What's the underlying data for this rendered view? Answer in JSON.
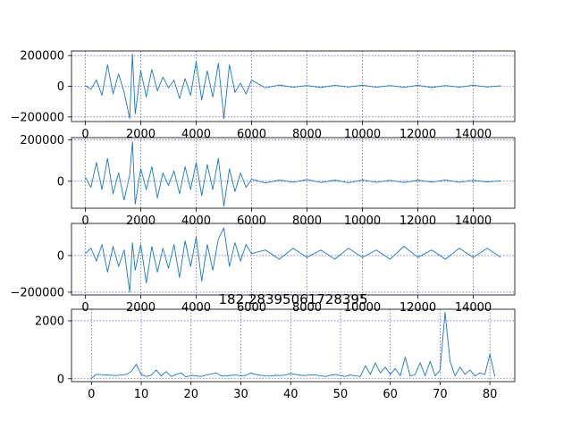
{
  "chart_data": [
    {
      "type": "line",
      "title": "",
      "xlabel": "",
      "ylabel": "",
      "xlim": [
        -500,
        15500
      ],
      "ylim": [
        -230000,
        230000
      ],
      "xticks": [
        0,
        2000,
        4000,
        6000,
        8000,
        10000,
        12000,
        14000
      ],
      "xtick_labels": [
        "0",
        "2000",
        "4000",
        "6000",
        "8000",
        "10000",
        "12000",
        "14000"
      ],
      "yticks": [
        -200000,
        0,
        200000
      ],
      "ytick_labels": [
        "−200000",
        "0",
        "200000"
      ],
      "grid": true,
      "color": "#1f77b4",
      "series": [
        {
          "x": [
            0,
            200,
            400,
            600,
            800,
            1000,
            1200,
            1400,
            1600,
            1700,
            1800,
            2000,
            2200,
            2400,
            2600,
            2800,
            3000,
            3200,
            3400,
            3600,
            3800,
            4000,
            4200,
            4400,
            4600,
            4800,
            5000,
            5200,
            5400,
            5600,
            5800,
            6000,
            6500,
            7000,
            7500,
            8000,
            8500,
            9000,
            9500,
            10000,
            10500,
            11000,
            11500,
            12000,
            12500,
            13000,
            13500,
            14000,
            14500,
            15000
          ],
          "values": [
            5000,
            -20000,
            40000,
            -60000,
            140000,
            -50000,
            80000,
            -40000,
            -210000,
            210000,
            -180000,
            100000,
            -70000,
            110000,
            -30000,
            60000,
            -10000,
            40000,
            -80000,
            50000,
            -60000,
            160000,
            -90000,
            100000,
            -70000,
            150000,
            -210000,
            140000,
            -40000,
            20000,
            -50000,
            40000,
            -10000,
            8000,
            -6000,
            5000,
            -8000,
            6000,
            -5000,
            7000,
            -6000,
            5000,
            -7000,
            6000,
            -8000,
            5000,
            -6000,
            7000,
            -5000,
            3000
          ]
        }
      ]
    },
    {
      "type": "line",
      "title": "",
      "xlabel": "",
      "ylabel": "",
      "xlim": [
        -500,
        15500
      ],
      "ylim": [
        -130000,
        210000
      ],
      "xticks": [
        0,
        2000,
        4000,
        6000,
        8000,
        10000,
        12000,
        14000
      ],
      "xtick_labels": [
        "0",
        "2000",
        "4000",
        "6000",
        "8000",
        "10000",
        "12000",
        "14000"
      ],
      "yticks": [
        0,
        200000
      ],
      "ytick_labels": [
        "0",
        "200000"
      ],
      "grid": true,
      "color": "#1f77b4",
      "series": [
        {
          "x": [
            0,
            200,
            400,
            600,
            800,
            1000,
            1200,
            1400,
            1600,
            1700,
            1800,
            2000,
            2200,
            2400,
            2600,
            2800,
            3000,
            3200,
            3400,
            3600,
            3800,
            4000,
            4200,
            4400,
            4600,
            4800,
            5000,
            5200,
            5400,
            5600,
            5800,
            6000,
            6500,
            7000,
            7500,
            8000,
            8500,
            9000,
            9500,
            10000,
            10500,
            11000,
            11500,
            12000,
            12500,
            13000,
            13500,
            14000,
            14500,
            15000
          ],
          "values": [
            20000,
            -30000,
            90000,
            -40000,
            110000,
            -60000,
            40000,
            -90000,
            30000,
            190000,
            -110000,
            60000,
            -40000,
            70000,
            -80000,
            40000,
            -20000,
            50000,
            -60000,
            70000,
            -40000,
            90000,
            -70000,
            80000,
            -40000,
            110000,
            -120000,
            60000,
            -50000,
            40000,
            -30000,
            10000,
            -8000,
            6000,
            -5000,
            8000,
            -6000,
            5000,
            -7000,
            6000,
            -5000,
            4000,
            -6000,
            5000,
            -4000,
            6000,
            -5000,
            4000,
            -3000,
            2000
          ]
        }
      ]
    },
    {
      "type": "line",
      "title": "",
      "xlabel": "",
      "ylabel": "",
      "xlim": [
        -500,
        15500
      ],
      "ylim": [
        -215000,
        175000
      ],
      "xticks": [
        0,
        2000,
        4000,
        6000,
        8000,
        10000,
        12000,
        14000
      ],
      "xtick_labels": [
        "0",
        "2000",
        "4000",
        "6000",
        "8000",
        "10000",
        "12000",
        "14000"
      ],
      "yticks": [
        -200000,
        0
      ],
      "ytick_labels": [
        "−200000",
        "0"
      ],
      "grid": true,
      "color": "#1f77b4",
      "series": [
        {
          "x": [
            0,
            200,
            400,
            600,
            800,
            1000,
            1200,
            1400,
            1600,
            1700,
            1800,
            2000,
            2200,
            2400,
            2600,
            2800,
            3000,
            3200,
            3400,
            3600,
            3800,
            4000,
            4200,
            4400,
            4600,
            4800,
            5000,
            5200,
            5400,
            5600,
            5800,
            6000,
            6500,
            7000,
            7500,
            8000,
            8500,
            9000,
            9500,
            10000,
            10500,
            11000,
            11500,
            12000,
            12500,
            13000,
            13500,
            14000,
            14500,
            15000
          ],
          "values": [
            10000,
            40000,
            -30000,
            60000,
            -90000,
            50000,
            -60000,
            30000,
            -200000,
            70000,
            -80000,
            60000,
            -150000,
            50000,
            -90000,
            40000,
            -70000,
            60000,
            -120000,
            80000,
            -60000,
            100000,
            -140000,
            60000,
            -80000,
            90000,
            150000,
            -60000,
            70000,
            -30000,
            60000,
            10000,
            30000,
            -20000,
            40000,
            -10000,
            30000,
            -20000,
            40000,
            -10000,
            30000,
            -20000,
            50000,
            -10000,
            30000,
            -20000,
            40000,
            -10000,
            40000,
            -10000
          ]
        }
      ]
    },
    {
      "type": "line",
      "title": "182.28395061728395",
      "xlabel": "",
      "ylabel": "",
      "xlim": [
        -4,
        85
      ],
      "ylim": [
        -100,
        2400
      ],
      "xticks": [
        0,
        10,
        20,
        30,
        40,
        50,
        60,
        70,
        80
      ],
      "xtick_labels": [
        "0",
        "10",
        "20",
        "30",
        "40",
        "50",
        "60",
        "70",
        "80"
      ],
      "yticks": [
        0,
        2000
      ],
      "ytick_labels": [
        "0",
        "2000"
      ],
      "grid": true,
      "color": "#1f77b4",
      "series": [
        {
          "x": [
            0,
            1,
            2,
            3,
            4,
            5,
            6,
            7,
            8,
            9,
            10,
            11,
            12,
            13,
            14,
            15,
            16,
            17,
            18,
            19,
            20,
            21,
            22,
            23,
            24,
            25,
            26,
            27,
            28,
            29,
            30,
            31,
            32,
            33,
            34,
            35,
            36,
            37,
            38,
            39,
            40,
            41,
            42,
            43,
            44,
            45,
            46,
            47,
            48,
            49,
            50,
            51,
            52,
            53,
            54,
            55,
            56,
            57,
            58,
            59,
            60,
            61,
            62,
            63,
            64,
            65,
            66,
            67,
            68,
            69,
            70,
            71,
            72,
            73,
            74,
            75,
            76,
            77,
            78,
            79,
            80,
            81
          ],
          "values": [
            20,
            150,
            140,
            130,
            120,
            110,
            130,
            150,
            250,
            500,
            150,
            80,
            120,
            300,
            100,
            250,
            80,
            150,
            200,
            60,
            120,
            100,
            80,
            130,
            160,
            200,
            100,
            90,
            120,
            130,
            100,
            120,
            200,
            150,
            120,
            100,
            90,
            120,
            110,
            130,
            180,
            150,
            120,
            110,
            140,
            130,
            100,
            80,
            120,
            150,
            110,
            80,
            130,
            100,
            80,
            450,
            150,
            550,
            200,
            400,
            150,
            350,
            100,
            750,
            100,
            150,
            550,
            100,
            600,
            100,
            300,
            2300,
            600,
            100,
            400,
            150,
            300,
            100,
            200,
            150,
            850,
            80
          ]
        }
      ]
    }
  ]
}
